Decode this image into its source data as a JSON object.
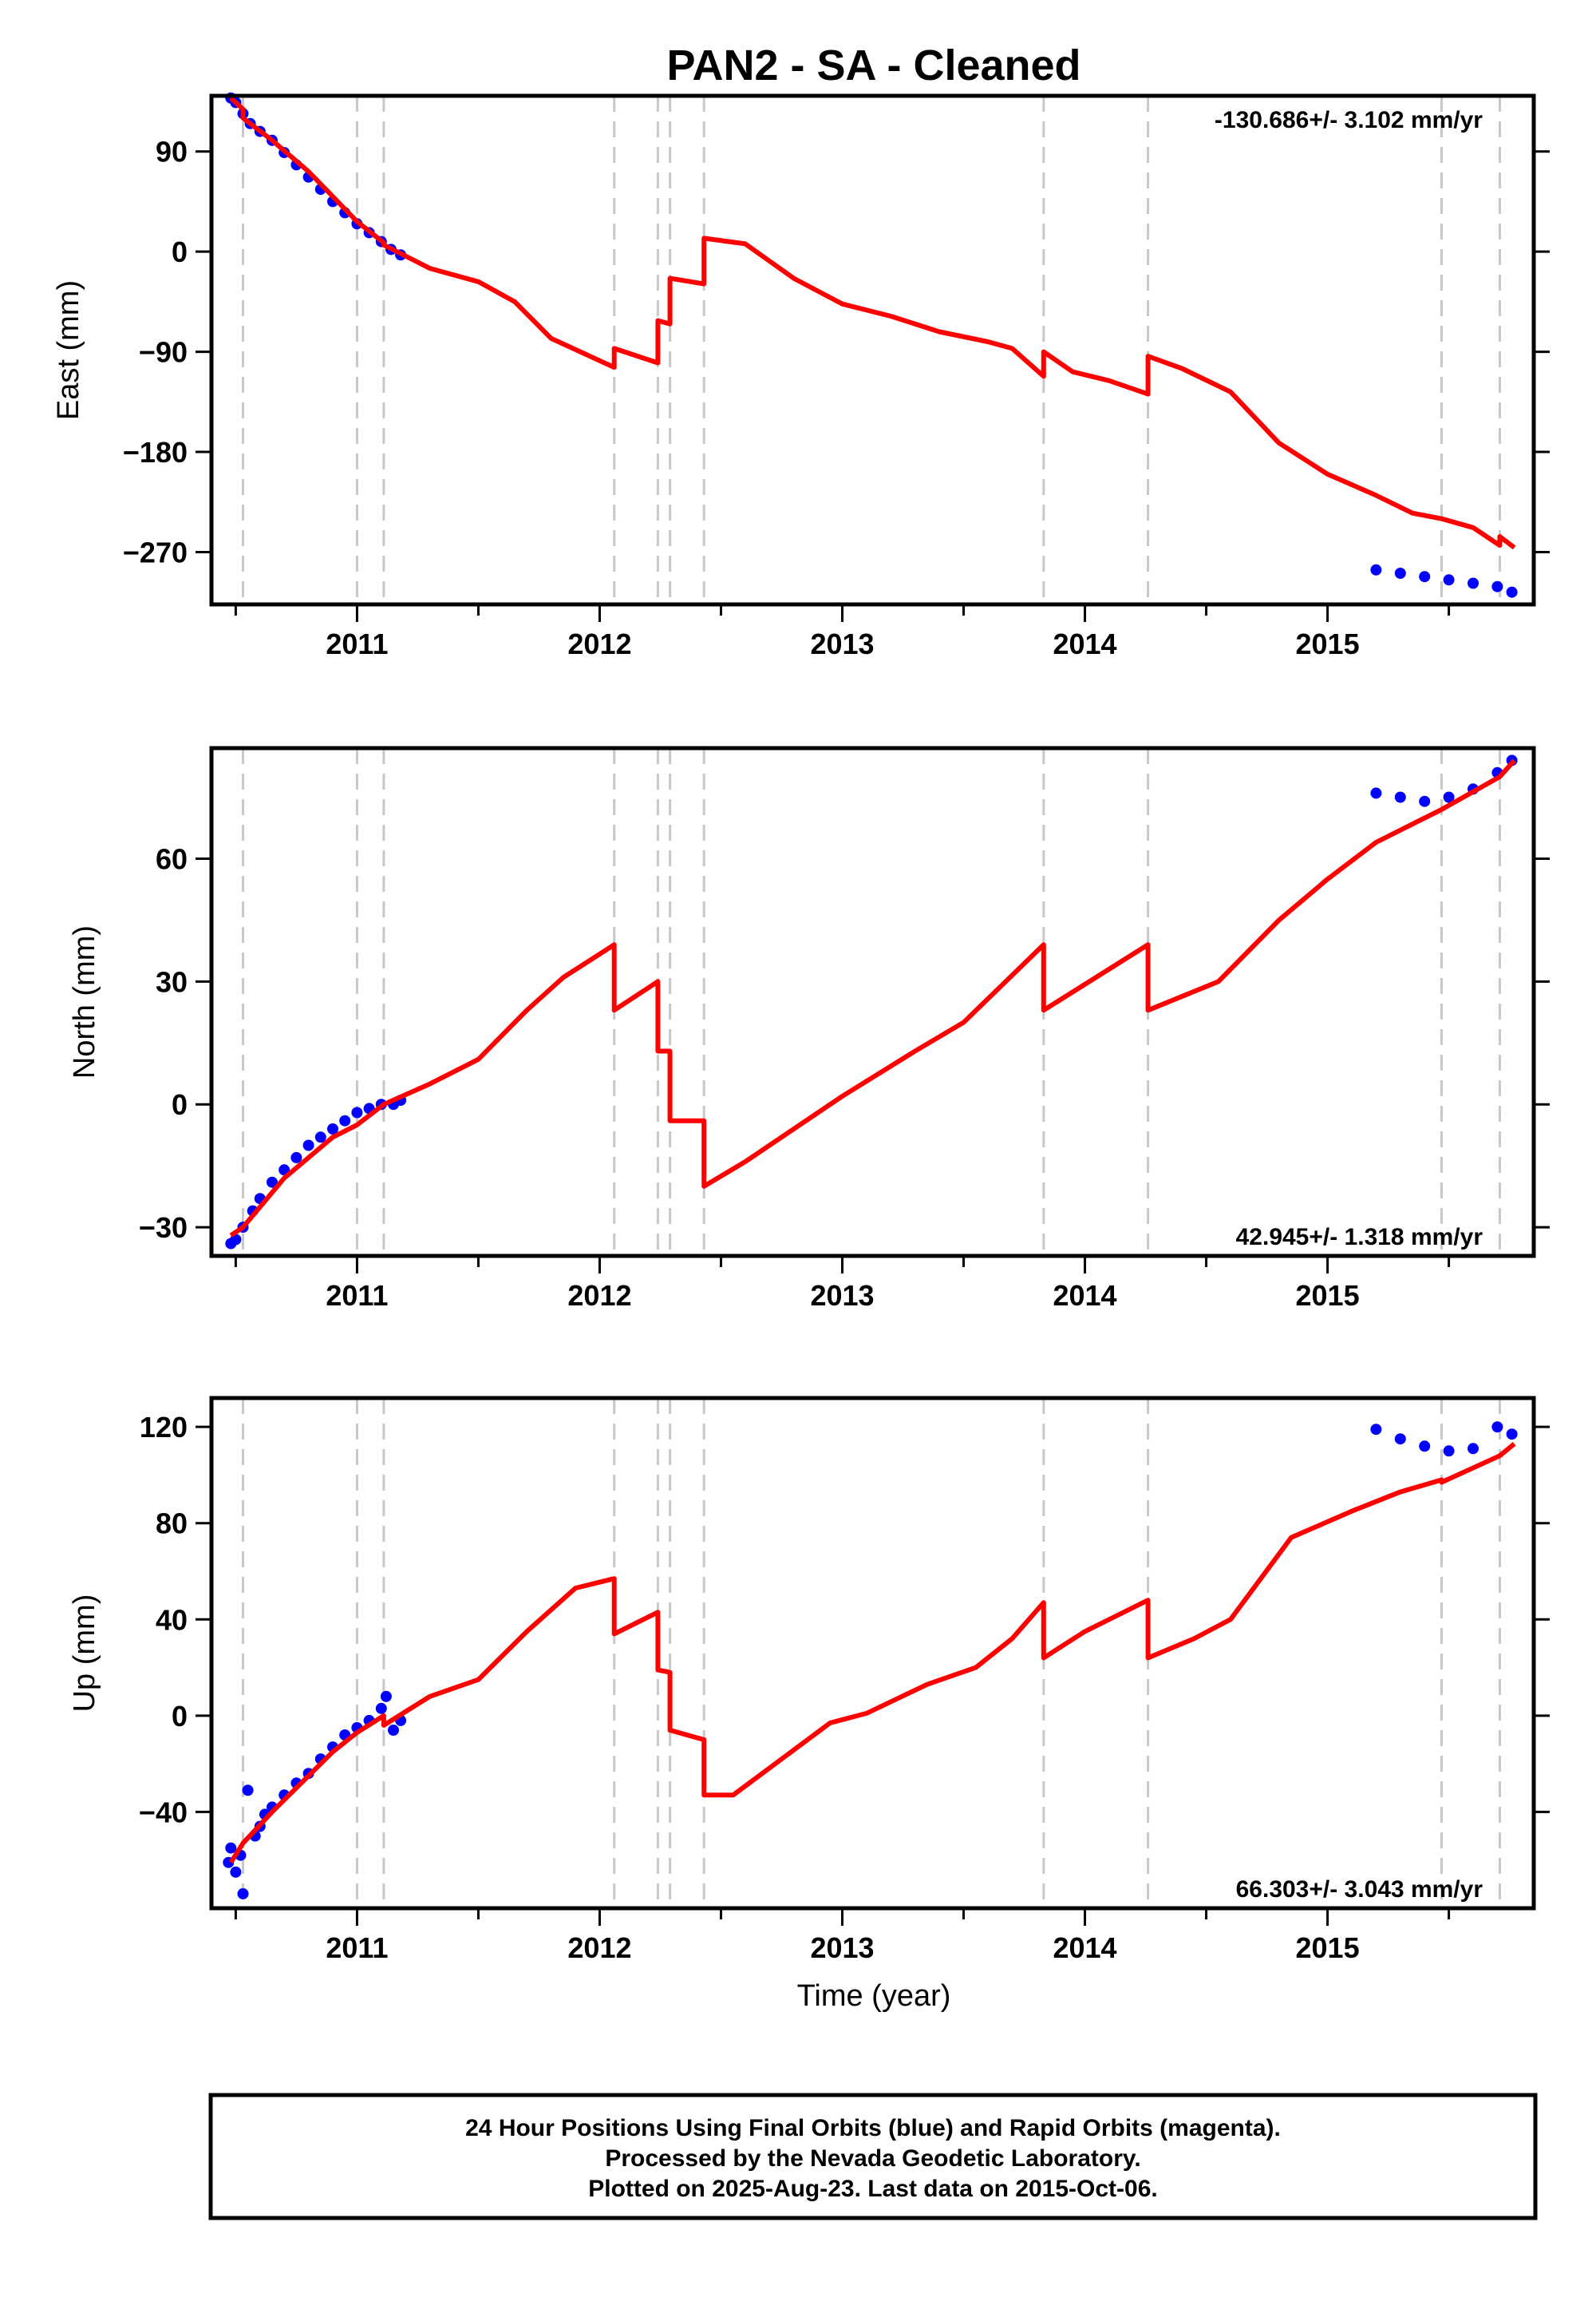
{
  "chart_data": {
    "type": "scatter",
    "title": "PAN2  - SA - Cleaned",
    "xlabel": "Time (year)",
    "xlim": [
      2010.4,
      2015.85
    ],
    "x_ticks": [
      2011,
      2012,
      2013,
      2014,
      2015
    ],
    "x_tick_labels": [
      "2011",
      "2012",
      "2013",
      "2014",
      "2015"
    ],
    "colors": {
      "observed": "#0000ff",
      "model": "#ff0000",
      "event_lines": "#c8c8c8"
    },
    "event_lines": [
      2010.53,
      2011.0,
      2011.11,
      2012.06,
      2012.24,
      2012.29,
      2012.43,
      2013.83,
      2014.26,
      2015.47,
      2015.71
    ],
    "panels": [
      {
        "ylabel": "East (mm)",
        "ylim": [
          -317,
          140
        ],
        "y_ticks": [
          -270,
          -180,
          -90,
          0,
          90
        ],
        "y_tick_labels": [
          "−270",
          "−180",
          "−90",
          "0",
          "90"
        ],
        "rate_label": "-130.686+/- 3.102 mm/yr",
        "rate_position": "top-right",
        "observed": [
          [
            2010.48,
            138
          ],
          [
            2010.5,
            134
          ],
          [
            2010.53,
            124
          ],
          [
            2010.56,
            115
          ],
          [
            2010.6,
            108
          ],
          [
            2010.65,
            100
          ],
          [
            2010.7,
            89
          ],
          [
            2010.75,
            78
          ],
          [
            2010.8,
            67
          ],
          [
            2010.85,
            56
          ],
          [
            2010.9,
            45
          ],
          [
            2010.95,
            35
          ],
          [
            2011.0,
            25
          ],
          [
            2011.05,
            17
          ],
          [
            2011.1,
            9
          ],
          [
            2011.14,
            2
          ],
          [
            2011.18,
            -3
          ],
          [
            2015.2,
            -286
          ],
          [
            2015.3,
            -289
          ],
          [
            2015.4,
            -292
          ],
          [
            2015.5,
            -295
          ],
          [
            2015.6,
            -298
          ],
          [
            2015.7,
            -301
          ],
          [
            2015.76,
            -306
          ]
        ],
        "model": [
          [
            2010.48,
            138
          ],
          [
            2010.53,
            128
          ],
          [
            2010.53,
            120
          ],
          [
            2010.65,
            100
          ],
          [
            2010.8,
            72
          ],
          [
            2011.0,
            27
          ],
          [
            2011.11,
            8
          ],
          [
            2011.11,
            6
          ],
          [
            2011.3,
            -15
          ],
          [
            2011.5,
            -27
          ],
          [
            2011.65,
            -45
          ],
          [
            2011.8,
            -78
          ],
          [
            2012.06,
            -104
          ],
          [
            2012.06,
            -87
          ],
          [
            2012.24,
            -100
          ],
          [
            2012.24,
            -62
          ],
          [
            2012.29,
            -65
          ],
          [
            2012.29,
            -24
          ],
          [
            2012.43,
            -29
          ],
          [
            2012.43,
            12
          ],
          [
            2012.6,
            7
          ],
          [
            2012.8,
            -24
          ],
          [
            2013.0,
            -47
          ],
          [
            2013.2,
            -58
          ],
          [
            2013.4,
            -72
          ],
          [
            2013.6,
            -81
          ],
          [
            2013.7,
            -87
          ],
          [
            2013.83,
            -112
          ],
          [
            2013.83,
            -90
          ],
          [
            2013.95,
            -108
          ],
          [
            2014.1,
            -116
          ],
          [
            2014.26,
            -128
          ],
          [
            2014.26,
            -94
          ],
          [
            2014.4,
            -105
          ],
          [
            2014.6,
            -126
          ],
          [
            2014.8,
            -172
          ],
          [
            2015.0,
            -200
          ],
          [
            2015.2,
            -219
          ],
          [
            2015.35,
            -235
          ],
          [
            2015.47,
            -240
          ],
          [
            2015.6,
            -248
          ],
          [
            2015.71,
            -264
          ],
          [
            2015.71,
            -256
          ],
          [
            2015.77,
            -266
          ]
        ]
      },
      {
        "ylabel": "North (mm)",
        "ylim": [
          -37,
          87
        ],
        "y_ticks": [
          -30,
          0,
          30,
          60
        ],
        "y_tick_labels": [
          "−30",
          "0",
          "30",
          "60"
        ],
        "rate_label": "42.945+/- 1.318 mm/yr",
        "rate_position": "bottom-right",
        "observed": [
          [
            2010.48,
            -34
          ],
          [
            2010.5,
            -33
          ],
          [
            2010.53,
            -30
          ],
          [
            2010.57,
            -26
          ],
          [
            2010.6,
            -23
          ],
          [
            2010.65,
            -19
          ],
          [
            2010.7,
            -16
          ],
          [
            2010.75,
            -13
          ],
          [
            2010.8,
            -10
          ],
          [
            2010.85,
            -8
          ],
          [
            2010.9,
            -6
          ],
          [
            2010.95,
            -4
          ],
          [
            2011.0,
            -2
          ],
          [
            2011.05,
            -1
          ],
          [
            2011.1,
            0
          ],
          [
            2011.15,
            0
          ],
          [
            2011.18,
            1
          ],
          [
            2015.2,
            76
          ],
          [
            2015.3,
            75
          ],
          [
            2015.4,
            74
          ],
          [
            2015.5,
            75
          ],
          [
            2015.6,
            77
          ],
          [
            2015.7,
            81
          ],
          [
            2015.76,
            84
          ]
        ],
        "model": [
          [
            2010.48,
            -32
          ],
          [
            2010.53,
            -30
          ],
          [
            2010.7,
            -18
          ],
          [
            2010.9,
            -8
          ],
          [
            2011.0,
            -5
          ],
          [
            2011.11,
            0
          ],
          [
            2011.3,
            5
          ],
          [
            2011.5,
            11
          ],
          [
            2011.7,
            23
          ],
          [
            2011.85,
            31
          ],
          [
            2012.06,
            39
          ],
          [
            2012.06,
            23
          ],
          [
            2012.24,
            30
          ],
          [
            2012.24,
            13
          ],
          [
            2012.29,
            13
          ],
          [
            2012.29,
            -4
          ],
          [
            2012.43,
            -4
          ],
          [
            2012.43,
            -20
          ],
          [
            2012.6,
            -14
          ],
          [
            2013.0,
            2
          ],
          [
            2013.3,
            13
          ],
          [
            2013.5,
            20
          ],
          [
            2013.83,
            39
          ],
          [
            2013.83,
            23
          ],
          [
            2014.26,
            39
          ],
          [
            2014.26,
            23
          ],
          [
            2014.55,
            30
          ],
          [
            2014.8,
            45
          ],
          [
            2015.0,
            55
          ],
          [
            2015.2,
            64
          ],
          [
            2015.47,
            72
          ],
          [
            2015.71,
            80
          ],
          [
            2015.77,
            84
          ]
        ]
      },
      {
        "ylabel": "Up (mm)",
        "ylim": [
          -80,
          132
        ],
        "y_ticks": [
          -40,
          0,
          40,
          80,
          120
        ],
        "y_tick_labels": [
          "−40",
          "0",
          "40",
          "80",
          "120"
        ],
        "rate_label": "66.303+/- 3.043 mm/yr",
        "rate_position": "bottom-right",
        "observed": [
          [
            2010.47,
            -61
          ],
          [
            2010.48,
            -55
          ],
          [
            2010.5,
            -65
          ],
          [
            2010.52,
            -58
          ],
          [
            2010.53,
            -74
          ],
          [
            2010.55,
            -31
          ],
          [
            2010.58,
            -50
          ],
          [
            2010.6,
            -46
          ],
          [
            2010.62,
            -41
          ],
          [
            2010.65,
            -38
          ],
          [
            2010.7,
            -33
          ],
          [
            2010.75,
            -28
          ],
          [
            2010.8,
            -24
          ],
          [
            2010.85,
            -18
          ],
          [
            2010.9,
            -13
          ],
          [
            2010.95,
            -8
          ],
          [
            2011.0,
            -5
          ],
          [
            2011.05,
            -2
          ],
          [
            2011.1,
            3
          ],
          [
            2011.12,
            8
          ],
          [
            2011.15,
            -6
          ],
          [
            2011.18,
            -2
          ],
          [
            2015.2,
            119
          ],
          [
            2015.3,
            115
          ],
          [
            2015.4,
            112
          ],
          [
            2015.5,
            110
          ],
          [
            2015.6,
            111
          ],
          [
            2015.7,
            120
          ],
          [
            2015.76,
            117
          ]
        ],
        "model": [
          [
            2010.48,
            -61
          ],
          [
            2010.53,
            -53
          ],
          [
            2010.65,
            -40
          ],
          [
            2010.8,
            -25
          ],
          [
            2010.9,
            -15
          ],
          [
            2011.0,
            -7
          ],
          [
            2011.11,
            0
          ],
          [
            2011.11,
            -4
          ],
          [
            2011.3,
            8
          ],
          [
            2011.5,
            15
          ],
          [
            2011.7,
            35
          ],
          [
            2011.9,
            53
          ],
          [
            2012.06,
            57
          ],
          [
            2012.06,
            34
          ],
          [
            2012.24,
            43
          ],
          [
            2012.24,
            19
          ],
          [
            2012.29,
            18
          ],
          [
            2012.29,
            -6
          ],
          [
            2012.43,
            -10
          ],
          [
            2012.43,
            -33
          ],
          [
            2012.55,
            -33
          ],
          [
            2012.75,
            -18
          ],
          [
            2012.95,
            -3
          ],
          [
            2013.1,
            1
          ],
          [
            2013.35,
            13
          ],
          [
            2013.55,
            20
          ],
          [
            2013.7,
            32
          ],
          [
            2013.83,
            47
          ],
          [
            2013.83,
            24
          ],
          [
            2014.0,
            35
          ],
          [
            2014.26,
            48
          ],
          [
            2014.26,
            24
          ],
          [
            2014.45,
            32
          ],
          [
            2014.6,
            40
          ],
          [
            2014.85,
            74
          ],
          [
            2015.1,
            85
          ],
          [
            2015.3,
            93
          ],
          [
            2015.47,
            98
          ],
          [
            2015.47,
            97
          ],
          [
            2015.71,
            108
          ],
          [
            2015.77,
            113
          ]
        ]
      }
    ]
  },
  "footer": {
    "line1": "24 Hour Positions Using Final Orbits (blue) and Rapid Orbits (magenta).",
    "line2": "Processed by the Nevada Geodetic Laboratory.",
    "line3": "Plotted on 2025-Aug-23. Last data on 2015-Oct-06."
  }
}
